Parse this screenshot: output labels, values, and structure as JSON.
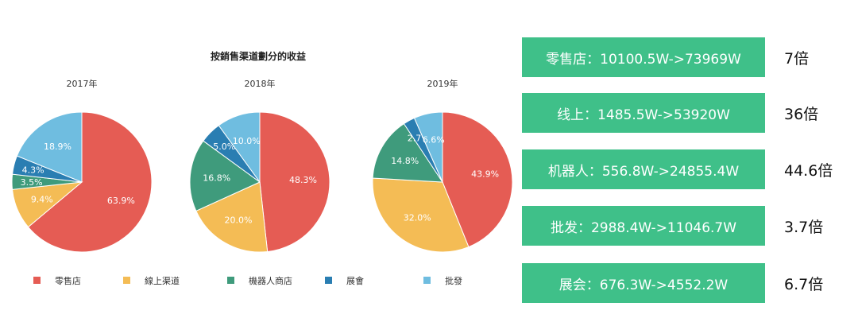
{
  "chart_data": {
    "type": "pie",
    "title": "按銷售渠道劃分的收益",
    "categories": [
      "零售店",
      "線上渠道",
      "機器人商店",
      "展會",
      "批發"
    ],
    "colors": [
      "#e55c54",
      "#f4bc55",
      "#3f9b7c",
      "#2a7eb2",
      "#6fbde0"
    ],
    "pies": [
      {
        "label": "2017年",
        "values": [
          63.9,
          9.4,
          3.5,
          4.3,
          18.9
        ],
        "value_labels": [
          "63.9%",
          "9.4%",
          "3.5%",
          "4.3%",
          "18.9%"
        ]
      },
      {
        "label": "2018年",
        "values": [
          48.3,
          20.0,
          16.8,
          5.0,
          10.0
        ],
        "value_labels": [
          "48.3%",
          "20.0%",
          "16.8%",
          "5.0%",
          "10.0%"
        ]
      },
      {
        "label": "2019年",
        "values": [
          43.9,
          32.0,
          14.8,
          2.7,
          6.6
        ],
        "value_labels": [
          "43.9%",
          "32.0%",
          "14.8%",
          "2.7%",
          "6.6%"
        ]
      }
    ],
    "legend_position": "bottom"
  },
  "stats": [
    {
      "text": "零售店：10100.5W->73969W",
      "multiplier": "7倍"
    },
    {
      "text": "线上：1485.5W->53920W",
      "multiplier": "36倍"
    },
    {
      "text": "机器人：556.8W->24855.4W",
      "multiplier": "44.6倍"
    },
    {
      "text": "批发：2988.4W->11046.7W",
      "multiplier": "3.7倍"
    },
    {
      "text": "展会：676.3W->4552.2W",
      "multiplier": "6.7倍"
    }
  ],
  "colors": {
    "stat_box": "#3fc089"
  }
}
